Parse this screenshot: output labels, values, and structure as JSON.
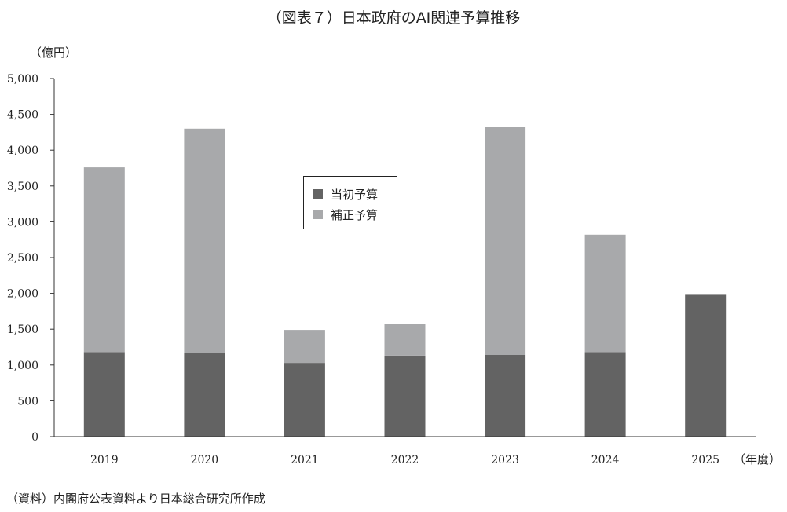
{
  "title": "（図表７）日本政府のAI関連予算推移",
  "source_note": "（資料）内閣府公表資料より日本総合研究所作成",
  "colors": {
    "initial": "#636363",
    "supplementary": "#a8a9ab",
    "axis": "#333333"
  },
  "chart_data": {
    "type": "bar",
    "stacked": true,
    "title": "（図表７）日本政府のAI関連予算推移",
    "ylabel": "（億円）",
    "xlabel": "（年度）",
    "categories": [
      "2019",
      "2020",
      "2021",
      "2022",
      "2023",
      "2024",
      "2025"
    ],
    "series": [
      {
        "name": "当初予算",
        "values": [
          1180,
          1170,
          1030,
          1130,
          1140,
          1180,
          1980
        ]
      },
      {
        "name": "補正予算",
        "values": [
          2580,
          3130,
          460,
          440,
          3180,
          1640,
          0
        ]
      }
    ],
    "ylim": [
      0,
      5000
    ],
    "yticks": [
      0,
      500,
      1000,
      1500,
      2000,
      2500,
      3000,
      3500,
      4000,
      4500,
      5000
    ],
    "ytick_labels": [
      "0",
      "500",
      "1,000",
      "1,500",
      "2,000",
      "2,500",
      "3,000",
      "3,500",
      "4,000",
      "4,500",
      "5,000"
    ],
    "grid": false,
    "legend_position": "upper-center"
  }
}
